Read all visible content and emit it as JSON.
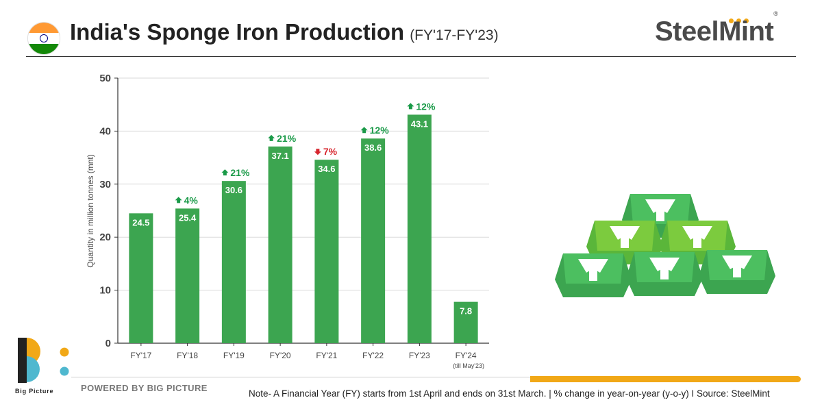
{
  "header": {
    "title": "India's Sponge Iron Production",
    "subtitle": "(FY'17-FY'23)",
    "brand": "SteelMint",
    "brand_mark": "®"
  },
  "flag_colors": [
    "#ff9933",
    "#ffffff",
    "#138808",
    "#000080"
  ],
  "colors": {
    "bar": "#3ca550",
    "up": "#1a9a48",
    "down": "#d7262e",
    "accent": "#f1a817"
  },
  "chart_data": {
    "type": "bar",
    "categories": [
      "FY'17",
      "FY'18",
      "FY'19",
      "FY'20",
      "FY'21",
      "FY'22",
      "FY'23",
      "FY'24"
    ],
    "category_notes": [
      "",
      "",
      "",
      "",
      "",
      "",
      "",
      "(till May'23)"
    ],
    "values": [
      24.5,
      25.4,
      30.6,
      37.1,
      34.6,
      38.6,
      43.1,
      7.8
    ],
    "value_labels": [
      "24.5",
      "25.4",
      "30.6",
      "37.1",
      "34.6",
      "38.6",
      "43.1",
      "7.8"
    ],
    "yoy_change": [
      "",
      "4%",
      "21%",
      "21%",
      "7%",
      "12%",
      "12%",
      ""
    ],
    "yoy_direction": [
      "",
      "up",
      "up",
      "up",
      "down",
      "up",
      "up",
      ""
    ],
    "ylabel": "Quantity in million tonnes (mnt)",
    "ylim": [
      0,
      50
    ],
    "yticks": [
      0,
      10,
      20,
      30,
      40,
      50
    ],
    "grid": true
  },
  "footer": {
    "powered_by": "POWERED BY BIG PICTURE",
    "logo_text": "Big Picture",
    "note": "Note- A Financial Year (FY) starts from 1st April and ends on 31st March. |  % change in year-on-year (y-o-y)  I  Source: SteelMint"
  }
}
